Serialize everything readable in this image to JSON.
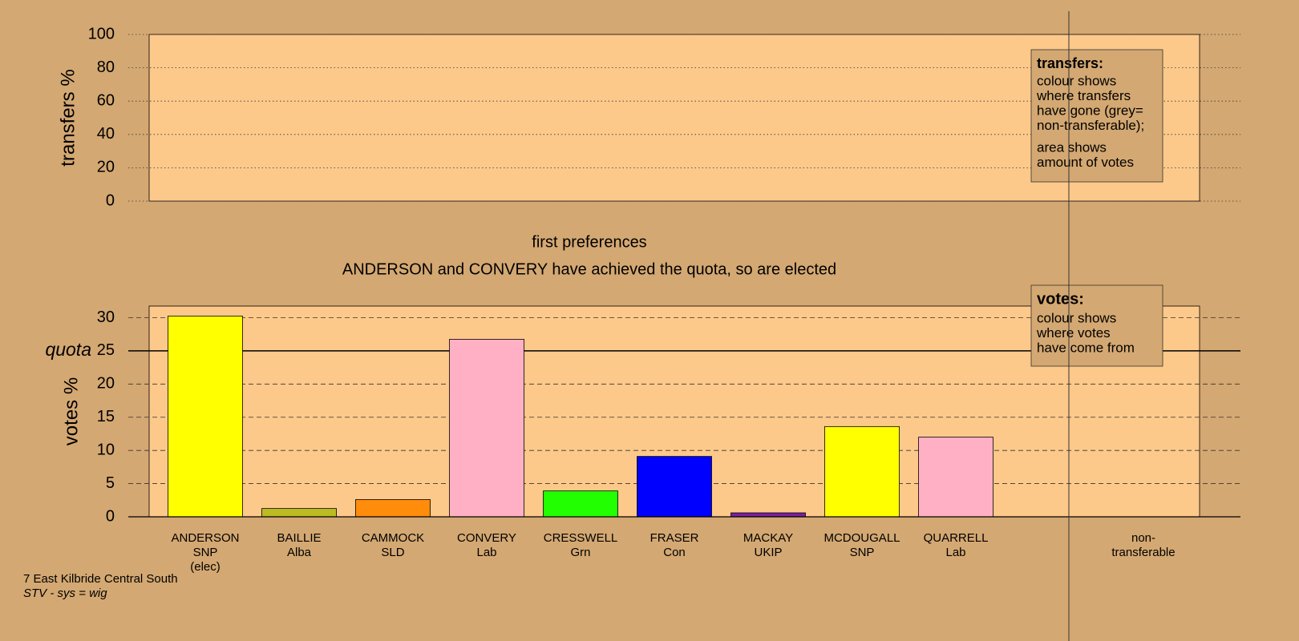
{
  "chart_data": [
    {
      "type": "transfers",
      "ylabel": "transfers %",
      "ylim": [
        0,
        100
      ],
      "yticks": [
        0,
        20,
        40,
        60,
        80,
        100
      ],
      "grid": true,
      "legend": {
        "heading": "transfers:",
        "lines": [
          [
            "colour shows",
            "where transfers",
            "have gone (grey=",
            "non-transferable);"
          ],
          [
            "area shows",
            "amount of votes"
          ]
        ]
      }
    },
    {
      "type": "bar",
      "title": "first preferences",
      "subtitle": "ANDERSON and CONVERY have achieved the quota, so are elected",
      "ylabel": "votes %",
      "ylim": [
        0,
        31.75
      ],
      "yticks": [
        0,
        5,
        10,
        15,
        20,
        25,
        30
      ],
      "grid": true,
      "quota": {
        "value": 25,
        "label": "quota"
      },
      "categories": [
        "ANDERSON",
        "BAILLIE",
        "CAMMOCK",
        "CONVERY",
        "CRESSWELL",
        "FRASER",
        "MACKAY",
        "MCDOUGALL",
        "QUARRELL"
      ],
      "parties": [
        "SNP",
        "Alba",
        "SLD",
        "Lab",
        "Grn",
        "Con",
        "UKIP",
        "SNP",
        "Lab"
      ],
      "notes": [
        "(elec)",
        null,
        null,
        null,
        null,
        null,
        null,
        null,
        null
      ],
      "values": [
        30.25,
        1.25,
        2.6,
        26.75,
        3.9,
        9.1,
        0.6,
        13.6,
        12.0
      ],
      "colors": [
        "#ffff00",
        "#bcbc22",
        "#ff8c0a",
        "#ffb0c4",
        "#22ff00",
        "#0000ff",
        "#7a1fa0",
        "#ffff00",
        "#ffb0c4"
      ],
      "nontransferable_label": [
        "non-",
        "transferable"
      ],
      "legend": {
        "heading": "votes:",
        "lines": [
          [
            "colour shows",
            "where votes",
            "have come from"
          ]
        ]
      }
    }
  ],
  "footer": {
    "constituency": "7 East Kilbride Central South",
    "system": "STV - sys = wig"
  }
}
